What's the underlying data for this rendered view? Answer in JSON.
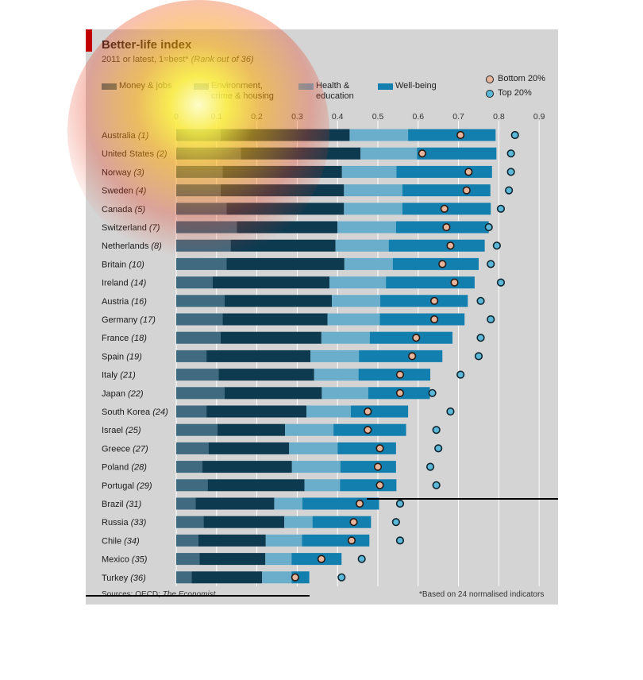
{
  "header": {
    "title": "Better-life index",
    "subtitle_main": "2011 or latest, 1=best*",
    "subtitle_note": "(Rank out of 36)"
  },
  "legend": {
    "money": "Money & jobs",
    "environment": "Environment, crime & housing",
    "health": "Health & education",
    "wellbeing": "Well-being",
    "bottom": "Bottom 20%",
    "top": "Top 20%"
  },
  "colors": {
    "money": "#3f6a80",
    "environment": "#0e3a50",
    "health": "#6aaecb",
    "wellbeing": "#137fae",
    "bottom_dot_fill": "#e6b59c",
    "top_dot_fill": "#5cb8d8",
    "grid": "#ffffff"
  },
  "footer": {
    "sources_label": "Sources: OECD; ",
    "sources_ital": "The Economist",
    "note": "*Based on 24 normalised indicators"
  },
  "chart_data": {
    "type": "bar",
    "stacked": true,
    "orientation": "horizontal",
    "title": "Better-life index",
    "xlim": [
      0,
      0.9
    ],
    "x_ticks": [
      "0",
      "0.1",
      "0.2",
      "0.3",
      "0.4",
      "0.5",
      "0.6",
      "0.7",
      "0.8",
      "0.9"
    ],
    "grid": true,
    "categories": [
      "Australia",
      "United States",
      "Norway",
      "Sweden",
      "Canada",
      "Switzerland",
      "Netherlands",
      "Britain",
      "Ireland",
      "Austria",
      "Germany",
      "France",
      "Spain",
      "Italy",
      "Japan",
      "South Korea",
      "Israel",
      "Greece",
      "Poland",
      "Portugal",
      "Brazil",
      "Russia",
      "Chile",
      "Mexico",
      "Turkey"
    ],
    "ranks": [
      "(1)",
      "(2)",
      "(3)",
      "(4)",
      "(5)",
      "(7)",
      "(8)",
      "(10)",
      "(14)",
      "(16)",
      "(17)",
      "(18)",
      "(19)",
      "(21)",
      "(22)",
      "(24)",
      "(25)",
      "(27)",
      "(28)",
      "(29)",
      "(31)",
      "(33)",
      "(34)",
      "(35)",
      "(36)"
    ],
    "series": [
      {
        "name": "Money & jobs",
        "values": [
          0.11,
          0.16,
          0.115,
          0.11,
          0.125,
          0.15,
          0.135,
          0.125,
          0.09,
          0.12,
          0.115,
          0.11,
          0.075,
          0.105,
          0.12,
          0.075,
          0.102,
          0.08,
          0.065,
          0.078,
          0.048,
          0.068,
          0.055,
          0.058,
          0.038
        ]
      },
      {
        "name": "Environment, crime & housing",
        "values": [
          0.32,
          0.297,
          0.296,
          0.306,
          0.291,
          0.25,
          0.26,
          0.292,
          0.29,
          0.266,
          0.26,
          0.25,
          0.258,
          0.237,
          0.241,
          0.248,
          0.168,
          0.2,
          0.222,
          0.24,
          0.195,
          0.2,
          0.167,
          0.163,
          0.175
        ]
      },
      {
        "name": "Health & education",
        "values": [
          0.145,
          0.14,
          0.135,
          0.145,
          0.145,
          0.145,
          0.132,
          0.12,
          0.14,
          0.12,
          0.13,
          0.12,
          0.12,
          0.11,
          0.115,
          0.11,
          0.12,
          0.12,
          0.12,
          0.088,
          0.07,
          0.07,
          0.09,
          0.065,
          0.073
        ]
      },
      {
        "name": "Well-being",
        "values": [
          0.217,
          0.197,
          0.237,
          0.218,
          0.219,
          0.23,
          0.238,
          0.213,
          0.22,
          0.217,
          0.21,
          0.205,
          0.207,
          0.178,
          0.153,
          0.142,
          0.18,
          0.145,
          0.138,
          0.14,
          0.19,
          0.145,
          0.167,
          0.124,
          0.044
        ]
      }
    ],
    "bottom20": [
      0.705,
      0.61,
      0.725,
      0.72,
      0.665,
      0.67,
      0.68,
      0.66,
      0.69,
      0.64,
      0.64,
      0.595,
      0.585,
      0.555,
      0.555,
      0.475,
      0.475,
      0.505,
      0.5,
      0.505,
      0.455,
      0.44,
      0.435,
      0.36,
      0.295
    ],
    "top20": [
      0.84,
      0.83,
      0.83,
      0.825,
      0.805,
      0.775,
      0.795,
      0.78,
      0.805,
      0.755,
      0.78,
      0.755,
      0.75,
      0.705,
      0.635,
      0.68,
      0.645,
      0.65,
      0.63,
      0.645,
      0.555,
      0.545,
      0.555,
      0.46,
      0.41
    ]
  }
}
